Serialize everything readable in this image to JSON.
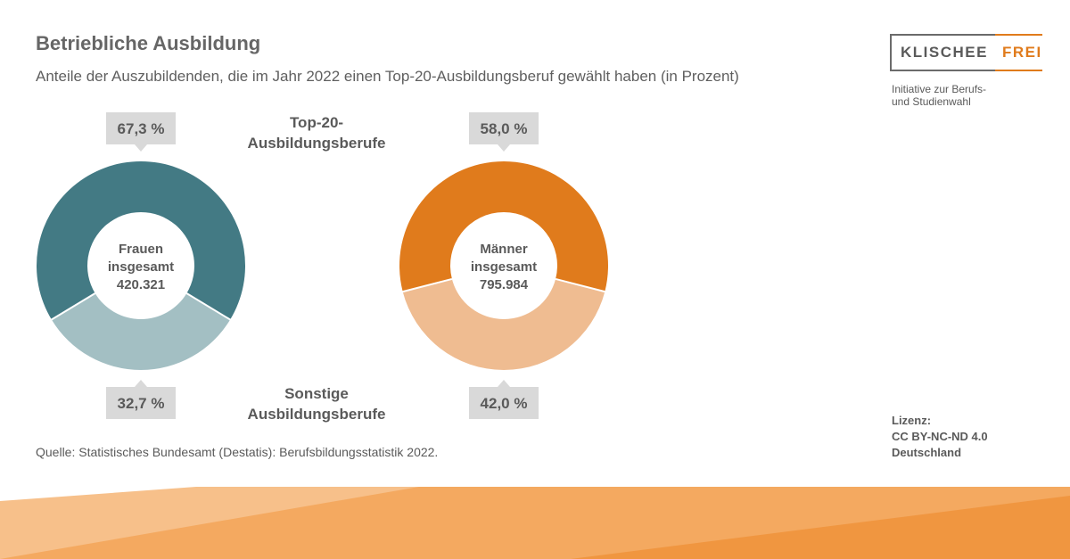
{
  "header": {
    "title": "Betriebliche Ausbildung",
    "subtitle": "Anteile der Auszubildenden, die im Jahr 2022 einen Top-20-Ausbildungsberuf gewählt haben (in Prozent)"
  },
  "logo": {
    "left": "KLISCHEE",
    "right": "FREI",
    "tagline_line1": "Initiative zur Berufs-",
    "tagline_line2": "und Studienwahl"
  },
  "labels": {
    "top_line1": "Top-20-",
    "top_line2": "Ausbildungsberufe",
    "bottom_line1": "Sonstige",
    "bottom_line2": "Ausbildungsberufe"
  },
  "source": "Quelle: Statistisches Bundesamt (Destatis): Berufsbildungsstatistik 2022.",
  "license": {
    "line1": "Lizenz:",
    "line2": "CC BY-NC-ND 4.0",
    "line3": "Deutschland"
  },
  "colors": {
    "frauen_top": "#437a84",
    "frauen_other": "#a3bfc3",
    "maenner_top": "#e07b1c",
    "maenner_other": "#efbc91",
    "callout_bg": "#d9d9d9",
    "footer_orange": "#f29a45"
  },
  "chart_data": [
    {
      "type": "pie",
      "variant": "donut",
      "center_line1": "Frauen",
      "center_line2": "insgesamt",
      "center_value": "420.321",
      "slices": [
        {
          "category": "Top-20-Ausbildungsberufe",
          "value": 67.3,
          "label": "67,3 %"
        },
        {
          "category": "Sonstige Ausbildungsberufe",
          "value": 32.7,
          "label": "32,7 %"
        }
      ]
    },
    {
      "type": "pie",
      "variant": "donut",
      "center_line1": "Männer",
      "center_line2": "insgesamt",
      "center_value": "795.984",
      "slices": [
        {
          "category": "Top-20-Ausbildungsberufe",
          "value": 58.0,
          "label": "58,0 %"
        },
        {
          "category": "Sonstige Ausbildungsberufe",
          "value": 42.0,
          "label": "42,0 %"
        }
      ]
    }
  ]
}
